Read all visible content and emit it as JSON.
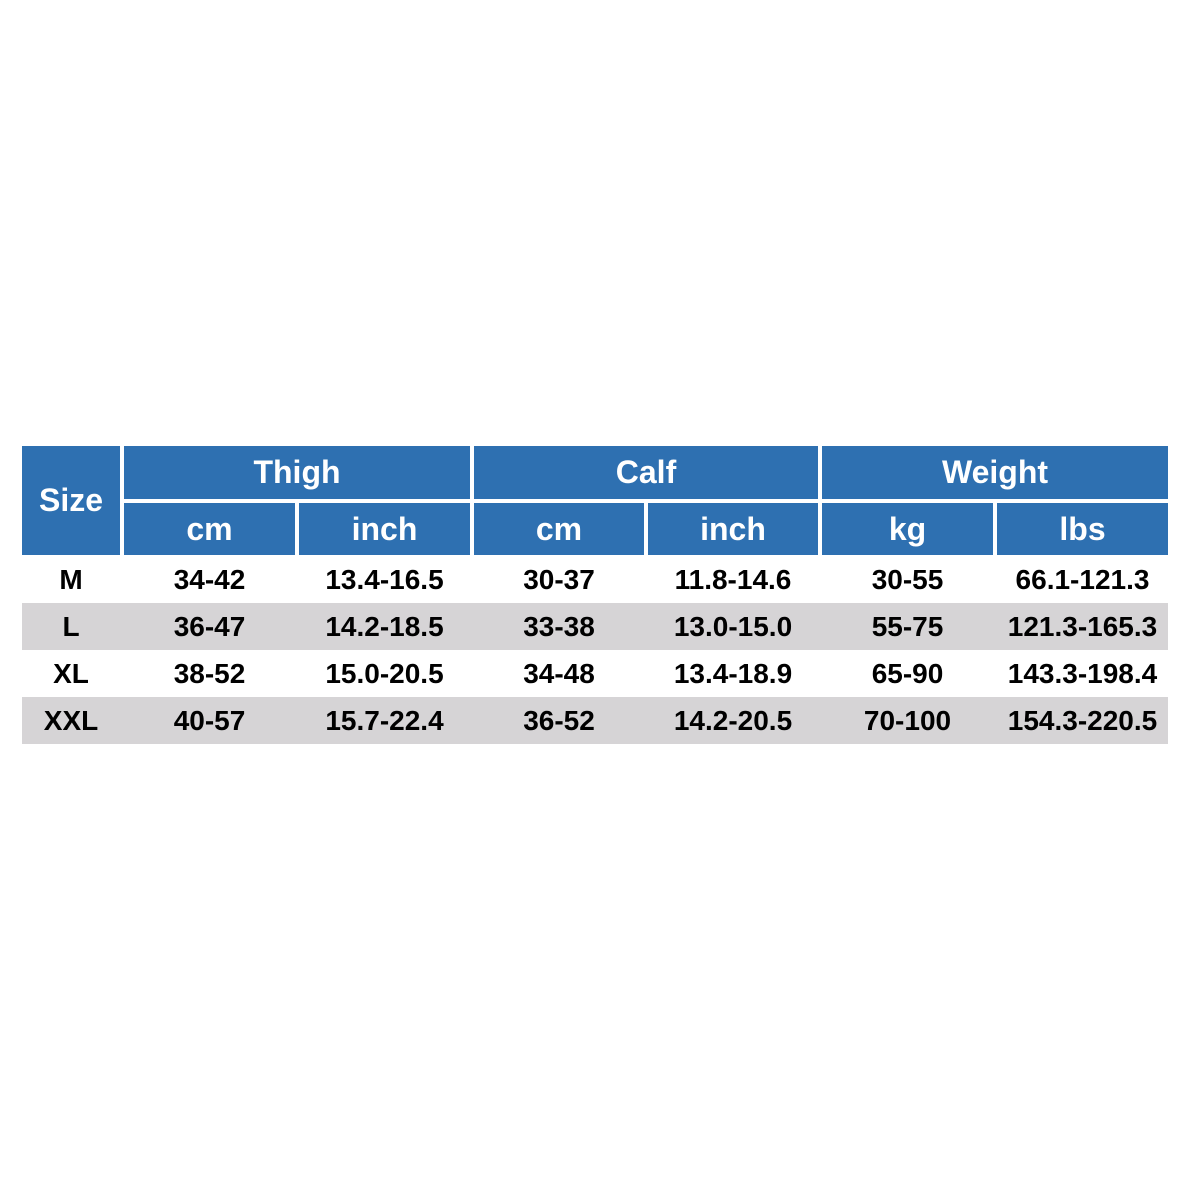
{
  "table": {
    "header": {
      "size": "Size",
      "groups": [
        {
          "label": "Thigh",
          "units": [
            "cm",
            "inch"
          ]
        },
        {
          "label": "Calf",
          "units": [
            "cm",
            "inch"
          ]
        },
        {
          "label": "Weight",
          "units": [
            "kg",
            "lbs"
          ]
        }
      ]
    },
    "rows": [
      [
        "M",
        "34-42",
        "13.4-16.5",
        "30-37",
        "11.8-14.6",
        "30-55",
        "66.1-121.3"
      ],
      [
        "L",
        "36-47",
        "14.2-18.5",
        "33-38",
        "13.0-15.0",
        "55-75",
        "121.3-165.3"
      ],
      [
        "XL",
        "38-52",
        "15.0-20.5",
        "34-48",
        "13.4-18.9",
        "65-90",
        "143.3-198.4"
      ],
      [
        "XXL",
        "40-57",
        "15.7-22.4",
        "36-52",
        "14.2-20.5",
        "70-100",
        "154.3-220.5"
      ]
    ]
  }
}
